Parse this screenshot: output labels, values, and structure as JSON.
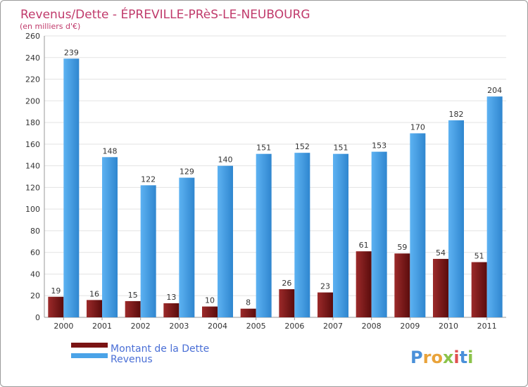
{
  "chart_data": {
    "type": "bar",
    "title": "Revenus/Dette - ÉPREVILLE-PRèS-LE-NEUBOURG",
    "subtitle": "(en milliers d'€)",
    "categories": [
      "2000",
      "2001",
      "2002",
      "2003",
      "2004",
      "2005",
      "2006",
      "2007",
      "2008",
      "2009",
      "2010",
      "2011"
    ],
    "series": [
      {
        "name": "Montant de la Dette",
        "color": "#7a1414",
        "values": [
          19,
          16,
          15,
          13,
          10,
          8,
          26,
          23,
          61,
          59,
          54,
          51
        ]
      },
      {
        "name": "Revenus",
        "color": "#4aa3e8",
        "values": [
          239,
          148,
          122,
          129,
          140,
          151,
          152,
          151,
          153,
          170,
          182,
          204
        ]
      }
    ],
    "ylim": [
      0,
      260
    ],
    "yticks": [
      0,
      20,
      40,
      60,
      80,
      100,
      120,
      140,
      160,
      180,
      200,
      220,
      240,
      260
    ],
    "grid": true,
    "legend": "bottom-left"
  },
  "logo": {
    "letters": [
      {
        "ch": "P",
        "color": "#4a90d9"
      },
      {
        "ch": "r",
        "color": "#e9a33a"
      },
      {
        "ch": "o",
        "color": "#e9a33a"
      },
      {
        "ch": "x",
        "color": "#8bc34a"
      },
      {
        "ch": "i",
        "color": "#e05050"
      },
      {
        "ch": "t",
        "color": "#4a90d9"
      },
      {
        "ch": "i",
        "color": "#8bc34a"
      }
    ]
  }
}
